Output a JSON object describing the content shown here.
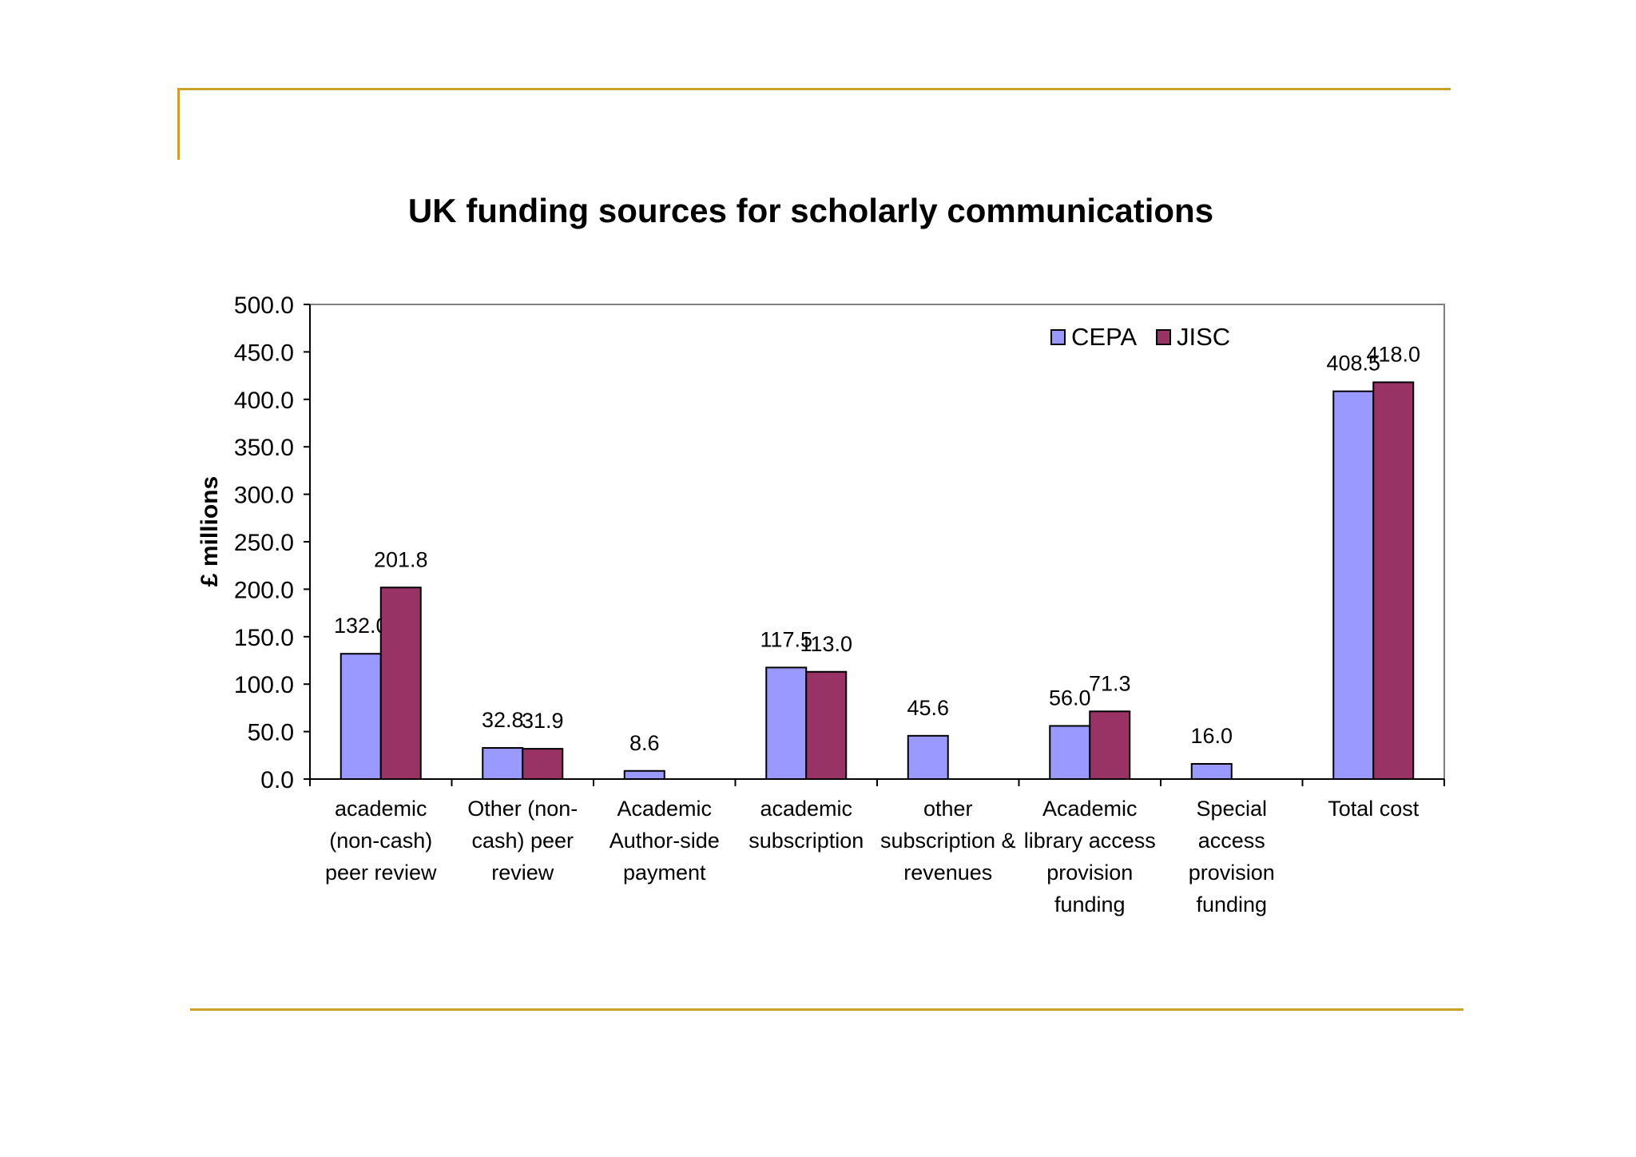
{
  "chart_data": {
    "type": "bar",
    "title": "UK funding sources for scholarly communications",
    "xlabel": "",
    "ylabel": "£ millions",
    "ylim": [
      0,
      500
    ],
    "yticks": [
      "0.0",
      "50.0",
      "100.0",
      "150.0",
      "200.0",
      "250.0",
      "300.0",
      "350.0",
      "400.0",
      "450.0",
      "500.0"
    ],
    "categories": [
      [
        "academic",
        "(non-cash)",
        "peer review"
      ],
      [
        "Other (non-",
        "cash) peer",
        "review"
      ],
      [
        "Academic",
        "Author-side",
        "payment"
      ],
      [
        "academic",
        "subscription"
      ],
      [
        "other",
        "subscription &",
        "revenues"
      ],
      [
        "Academic",
        "library access",
        "provision",
        "funding"
      ],
      [
        "Special",
        "access",
        "provision",
        "funding"
      ],
      [
        "Total cost"
      ]
    ],
    "series": [
      {
        "name": "CEPA",
        "color": "#9999ff",
        "values": [
          132.0,
          32.8,
          8.6,
          117.5,
          45.6,
          56.0,
          null,
          408.5
        ],
        "labels": [
          "132.0",
          "32.8",
          "8.6",
          "117.5",
          "45.6",
          "56.0",
          "16.0",
          "408.5"
        ]
      },
      {
        "name": "JISC",
        "color": "#993366",
        "values": [
          201.8,
          31.9,
          null,
          113.0,
          null,
          71.3,
          null,
          418.0
        ],
        "labels": [
          "201.8",
          "31.9",
          null,
          "113.0",
          null,
          "71.3",
          null,
          "418.0"
        ]
      }
    ],
    "special_access_cepa": 16.0,
    "legend_position": "top-right",
    "grid": false
  }
}
